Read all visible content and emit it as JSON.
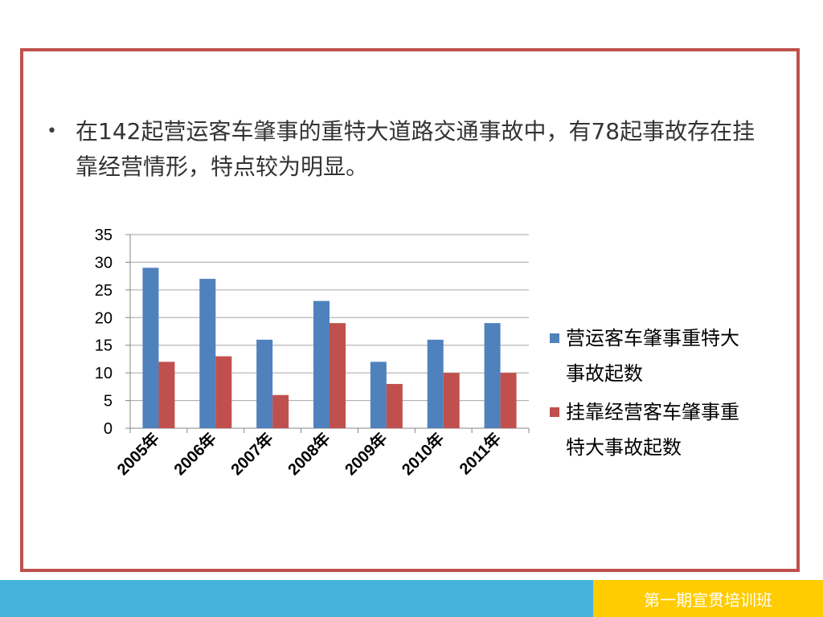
{
  "slide": {
    "bullet_text": "在142起营运客车肇事的重特大道路交通事故中，有78起事故存在挂靠经营情形，特点较为明显。",
    "footer_text": "第一期宣贯培训班",
    "frame_color": "#c0504d",
    "footer_left_color": "#45b2dc",
    "footer_right_color": "#ffcc00"
  },
  "chart_data": {
    "type": "bar",
    "categories": [
      "2005年",
      "2006年",
      "2007年",
      "2008年",
      "2009年",
      "2010年",
      "2011年"
    ],
    "series": [
      {
        "name": "营运客车肇事重特大事故起数",
        "color": "#4f81bd",
        "values": [
          29,
          27,
          16,
          23,
          12,
          16,
          19
        ]
      },
      {
        "name": "挂靠经营客车肇事重特大事故起数",
        "color": "#c0504d",
        "values": [
          12,
          13,
          6,
          19,
          8,
          10,
          10
        ]
      }
    ],
    "ylim": [
      0,
      35
    ],
    "yticks": [
      0,
      5,
      10,
      15,
      20,
      25,
      30,
      35
    ],
    "grid": true,
    "legend_position": "right"
  }
}
